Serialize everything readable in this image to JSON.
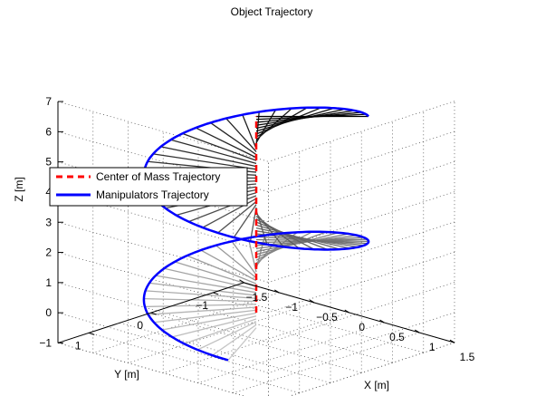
{
  "chart_data": {
    "type": "line",
    "projection": "3d",
    "title": "Object Trajectory",
    "xlabel": "X [m]",
    "ylabel": "Y [m]",
    "zlabel": "Z [m]",
    "xlim": [
      -1.5,
      1.5
    ],
    "ylim": [
      -1.5,
      1.5
    ],
    "zlim": [
      -1,
      7
    ],
    "x_ticks": [
      "−1.5",
      "−1",
      "−0.5",
      "0",
      "0.5",
      "1",
      "1.5"
    ],
    "y_ticks": [
      "−1",
      "0",
      "1"
    ],
    "z_ticks": [
      "−1",
      "0",
      "1",
      "2",
      "3",
      "4",
      "5",
      "6",
      "7"
    ],
    "grid": true,
    "legend_placement": "middle-left",
    "series": [
      {
        "name": "Center of Mass Trajectory",
        "style": "dashed",
        "color": "#ff0000",
        "x": [
          0,
          0
        ],
        "y": [
          0,
          0
        ],
        "z": [
          0,
          6.5
        ]
      },
      {
        "name": "Manipulators Trajectory",
        "style": "solid",
        "color": "#0000ff",
        "radius": 1.2,
        "turns": 1.7,
        "z_range": [
          -0.5,
          6.5
        ]
      }
    ],
    "connectors": {
      "count": 72,
      "color_start": "#c8c8c8",
      "color_end": "#000000"
    }
  }
}
